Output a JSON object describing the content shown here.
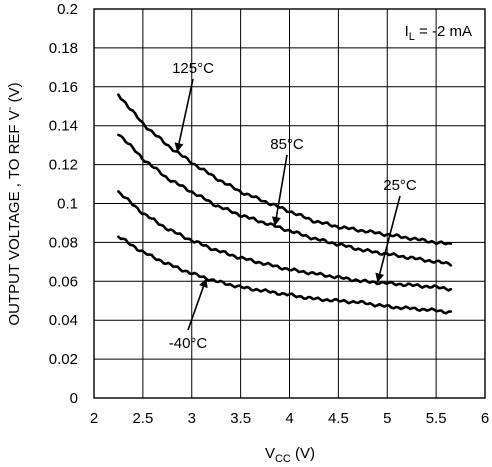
{
  "chart_data": {
    "type": "line",
    "xlabel": "V",
    "xlabel_sub": "CC",
    "xlabel_unit": " (V)",
    "ylabel": "OUTPUT VOLTAGE , TO REF V",
    "ylabel_sup": "-",
    "ylabel_unit": " (V)",
    "xlim": [
      2,
      6
    ],
    "ylim": [
      0,
      0.2
    ],
    "x_ticks": [
      "2",
      "2.5",
      "3",
      "3.5",
      "4",
      "4.5",
      "5",
      "5.5",
      "6"
    ],
    "y_ticks": [
      "0",
      "0.02",
      "0.04",
      "0.06",
      "0.08",
      "0.1",
      "0.12",
      "0.14",
      "0.16",
      "0.18",
      "0.2"
    ],
    "grid": true,
    "condition": {
      "prefix": "I",
      "sub": "L",
      "suffix": " = -2 mA"
    },
    "series": [
      {
        "name": "125°C",
        "x": [
          2.25,
          2.5,
          2.75,
          3.0,
          3.25,
          3.5,
          3.75,
          4.0,
          4.25,
          4.5,
          4.75,
          5.0,
          5.25,
          5.5,
          5.65
        ],
        "y": [
          0.156,
          0.141,
          0.13,
          0.121,
          0.113,
          0.106,
          0.101,
          0.096,
          0.091,
          0.088,
          0.086,
          0.084,
          0.082,
          0.08,
          0.079
        ]
      },
      {
        "name": "85°C",
        "x": [
          2.25,
          2.5,
          2.75,
          3.0,
          3.25,
          3.5,
          3.75,
          4.0,
          4.25,
          4.5,
          4.75,
          5.0,
          5.25,
          5.5,
          5.65
        ],
        "y": [
          0.136,
          0.123,
          0.113,
          0.106,
          0.099,
          0.094,
          0.09,
          0.086,
          0.082,
          0.079,
          0.076,
          0.074,
          0.072,
          0.07,
          0.069
        ]
      },
      {
        "name": "25°C",
        "x": [
          2.25,
          2.5,
          2.75,
          3.0,
          3.25,
          3.5,
          3.75,
          4.0,
          4.25,
          4.5,
          4.75,
          5.0,
          5.25,
          5.5,
          5.65
        ],
        "y": [
          0.106,
          0.095,
          0.087,
          0.081,
          0.076,
          0.072,
          0.069,
          0.066,
          0.064,
          0.062,
          0.06,
          0.059,
          0.058,
          0.057,
          0.056
        ]
      },
      {
        "name": "-40°C",
        "x": [
          2.25,
          2.5,
          2.75,
          3.0,
          3.25,
          3.5,
          3.75,
          4.0,
          4.25,
          4.5,
          4.75,
          5.0,
          5.25,
          5.5,
          5.65
        ],
        "y": [
          0.083,
          0.075,
          0.069,
          0.064,
          0.06,
          0.057,
          0.055,
          0.053,
          0.051,
          0.05,
          0.049,
          0.047,
          0.046,
          0.045,
          0.044
        ]
      }
    ],
    "annotations": [
      {
        "text": "125°C",
        "series": 0,
        "at_x": 2.85
      },
      {
        "text": "85°C",
        "series": 1,
        "at_x": 3.85
      },
      {
        "text": "25°C",
        "series": 2,
        "at_x": 4.9
      },
      {
        "text": "-40°C",
        "series": 3,
        "at_x": 3.15
      }
    ]
  }
}
